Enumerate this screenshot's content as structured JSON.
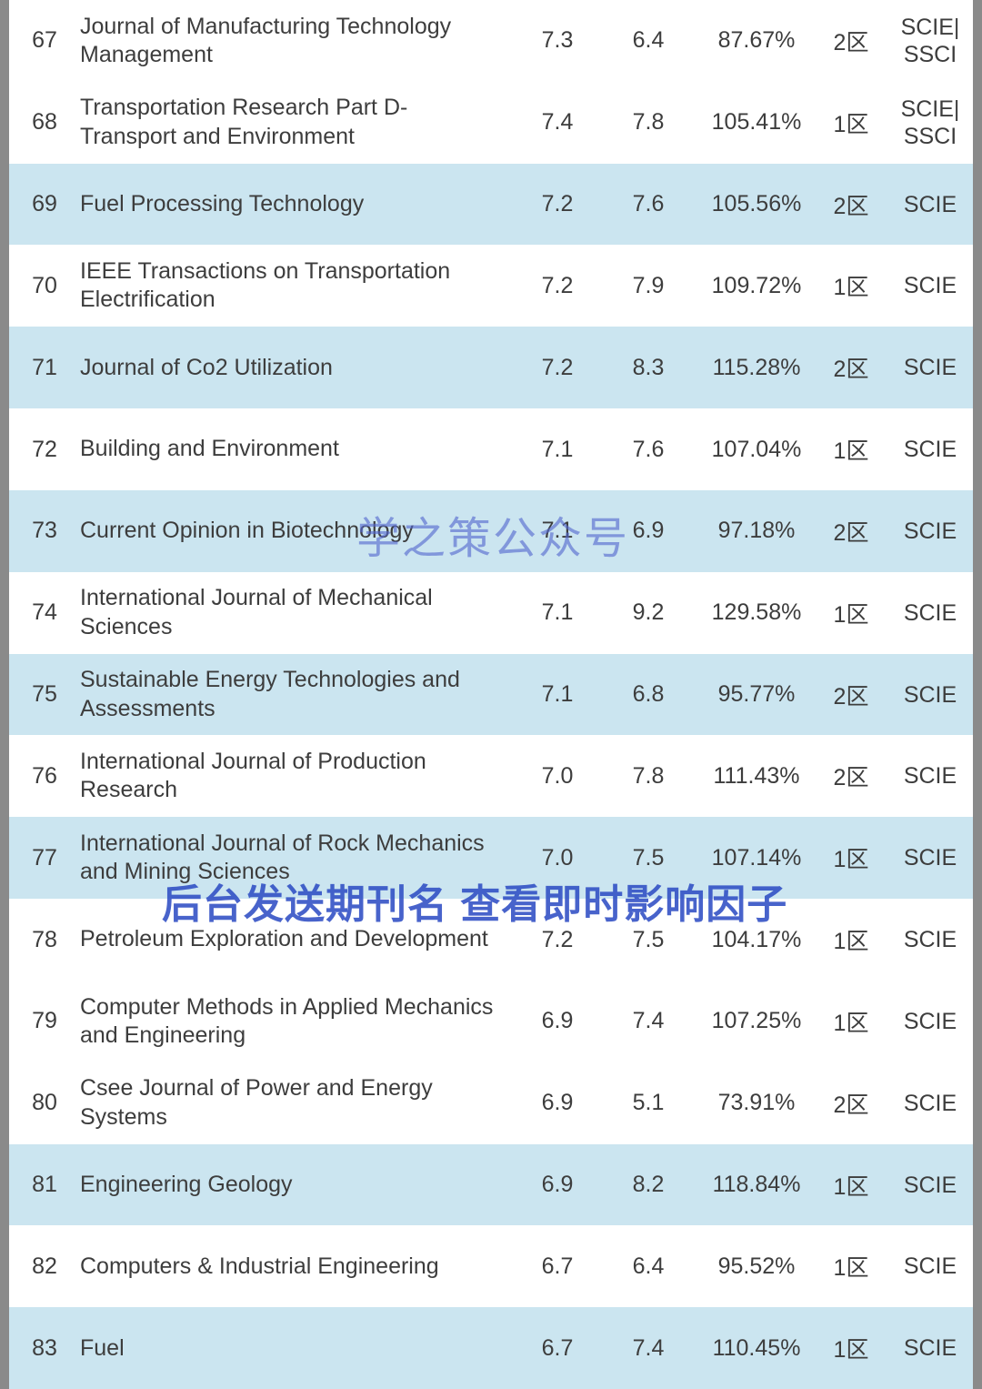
{
  "colors": {
    "row_shaded": "#cbe5f0",
    "row_plain": "#ffffff",
    "frame": "#8a8a8a",
    "text": "#3d3d3d",
    "watermark_center": "#5468cf",
    "watermark_lower": "#2f4ec4"
  },
  "watermarks": {
    "center": "学之策公众号",
    "lower": "后台发送期刊名 查看即时影响因子"
  },
  "table": {
    "rows": [
      {
        "rank": "67",
        "name": "Journal of Manufacturing Technology Management",
        "v1": "7.3",
        "v2": "6.4",
        "pct": "87.67%",
        "zone": "2区",
        "idx": "SCIE|\nSSCI",
        "shaded": false
      },
      {
        "rank": "68",
        "name": "Transportation Research Part D-Transport and Environment",
        "v1": "7.4",
        "v2": "7.8",
        "pct": "105.41%",
        "zone": "1区",
        "idx": "SCIE|\nSSCI",
        "shaded": false
      },
      {
        "rank": "69",
        "name": "Fuel Processing Technology",
        "v1": "7.2",
        "v2": "7.6",
        "pct": "105.56%",
        "zone": "2区",
        "idx": "SCIE",
        "shaded": true
      },
      {
        "rank": "70",
        "name": "IEEE Transactions on Transportation Electrification",
        "v1": "7.2",
        "v2": "7.9",
        "pct": "109.72%",
        "zone": "1区",
        "idx": "SCIE",
        "shaded": false
      },
      {
        "rank": "71",
        "name": "Journal of Co2 Utilization",
        "v1": "7.2",
        "v2": "8.3",
        "pct": "115.28%",
        "zone": "2区",
        "idx": "SCIE",
        "shaded": true
      },
      {
        "rank": "72",
        "name": "Building and Environment",
        "v1": "7.1",
        "v2": "7.6",
        "pct": "107.04%",
        "zone": "1区",
        "idx": "SCIE",
        "shaded": false
      },
      {
        "rank": "73",
        "name": "Current Opinion in Biotechnology",
        "v1": "7.1",
        "v2": "6.9",
        "pct": "97.18%",
        "zone": "2区",
        "idx": "SCIE",
        "shaded": true
      },
      {
        "rank": "74",
        "name": "International Journal of Mechanical Sciences",
        "v1": "7.1",
        "v2": "9.2",
        "pct": "129.58%",
        "zone": "1区",
        "idx": "SCIE",
        "shaded": false
      },
      {
        "rank": "75",
        "name": "Sustainable Energy Technologies and Assessments",
        "v1": "7.1",
        "v2": "6.8",
        "pct": "95.77%",
        "zone": "2区",
        "idx": "SCIE",
        "shaded": true
      },
      {
        "rank": "76",
        "name": "International Journal of Production Research",
        "v1": "7.0",
        "v2": "7.8",
        "pct": "111.43%",
        "zone": "2区",
        "idx": "SCIE",
        "shaded": false
      },
      {
        "rank": "77",
        "name": "International Journal of Rock Mechanics and Mining Sciences",
        "v1": "7.0",
        "v2": "7.5",
        "pct": "107.14%",
        "zone": "1区",
        "idx": "SCIE",
        "shaded": true
      },
      {
        "rank": "78",
        "name": "Petroleum Exploration and Development",
        "v1": "7.2",
        "v2": "7.5",
        "pct": "104.17%",
        "zone": "1区",
        "idx": "SCIE",
        "shaded": false
      },
      {
        "rank": "79",
        "name": "Computer Methods in Applied Mechanics and Engineering",
        "v1": "6.9",
        "v2": "7.4",
        "pct": "107.25%",
        "zone": "1区",
        "idx": "SCIE",
        "shaded": false
      },
      {
        "rank": "80",
        "name": "Csee Journal of Power and Energy Systems",
        "v1": "6.9",
        "v2": "5.1",
        "pct": "73.91%",
        "zone": "2区",
        "idx": "SCIE",
        "shaded": false
      },
      {
        "rank": "81",
        "name": "Engineering Geology",
        "v1": "6.9",
        "v2": "8.2",
        "pct": "118.84%",
        "zone": "1区",
        "idx": "SCIE",
        "shaded": true
      },
      {
        "rank": "82",
        "name": "Computers & Industrial Engineering",
        "v1": "6.7",
        "v2": "6.4",
        "pct": "95.52%",
        "zone": "1区",
        "idx": "SCIE",
        "shaded": false
      },
      {
        "rank": "83",
        "name": "Fuel",
        "v1": "6.7",
        "v2": "7.4",
        "pct": "110.45%",
        "zone": "1区",
        "idx": "SCIE",
        "shaded": true
      }
    ]
  }
}
